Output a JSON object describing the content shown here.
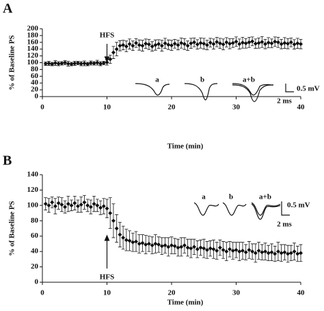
{
  "chart_data": [
    {
      "type": "scatter",
      "panel_label": "A",
      "xlabel": "Time (min)",
      "ylabel": "% of Baseline PS",
      "xlim": [
        0,
        40
      ],
      "xticks": [
        0,
        10,
        20,
        30,
        40
      ],
      "ylim": [
        0,
        200
      ],
      "yticks": [
        0,
        20,
        40,
        60,
        80,
        100,
        120,
        140,
        160,
        180,
        200
      ],
      "annotation": {
        "text": "HFS",
        "x": 10,
        "direction": "down"
      },
      "inset_labels": [
        "a",
        "b",
        "a+b"
      ],
      "scale_labels": [
        "0.5 mV",
        "2 ms"
      ],
      "x": [
        0.5,
        1,
        1.5,
        2,
        2.5,
        3,
        3.5,
        4,
        4.5,
        5,
        5.5,
        6,
        6.5,
        7,
        7.5,
        8,
        8.5,
        9,
        9.5,
        10,
        10.5,
        11,
        11.5,
        12,
        12.5,
        13,
        13.5,
        14,
        14.5,
        15,
        15.5,
        16,
        16.5,
        17,
        17.5,
        18,
        18.5,
        19,
        19.5,
        20,
        20.5,
        21,
        21.5,
        22,
        22.5,
        23,
        23.5,
        24,
        24.5,
        25,
        25.5,
        26,
        26.5,
        27,
        27.5,
        28,
        28.5,
        29,
        29.5,
        30,
        30.5,
        31,
        31.5,
        32,
        32.5,
        33,
        33.5,
        34,
        34.5,
        35,
        35.5,
        36,
        36.5,
        37,
        37.5,
        38,
        38.5,
        39,
        39.5,
        40
      ],
      "series": [
        {
          "color": "#111111",
          "marker": "diamond",
          "values": [
            97,
            98,
            96,
            99,
            97,
            98,
            100,
            97,
            96,
            98,
            99,
            97,
            98,
            96,
            99,
            98,
            100,
            97,
            99,
            101,
            110,
            130,
            140,
            150,
            152,
            148,
            155,
            150,
            158,
            152,
            150,
            156,
            154,
            148,
            152,
            155,
            150,
            157,
            153,
            151,
            156,
            152,
            158,
            155,
            150,
            157,
            160,
            154,
            158,
            156,
            152,
            159,
            155,
            161,
            157,
            154,
            160,
            156,
            158,
            162,
            155,
            159,
            157,
            160,
            163,
            156,
            158,
            161,
            155,
            159,
            157,
            162,
            160,
            155,
            158,
            156,
            160,
            154,
            157,
            155
          ],
          "errors": [
            5,
            6,
            5,
            7,
            6,
            5,
            6,
            7,
            5,
            6,
            5,
            6,
            7,
            5,
            6,
            5,
            7,
            6,
            5,
            8,
            12,
            18,
            20,
            15,
            14,
            16,
            15,
            14,
            13,
            15,
            16,
            14,
            15,
            14,
            15,
            13,
            16,
            15,
            14,
            15,
            13,
            14,
            15,
            16,
            14,
            15,
            13,
            14,
            15,
            16,
            14,
            13,
            15,
            14,
            15,
            16,
            14,
            15,
            13,
            14,
            15,
            16,
            14,
            15,
            13,
            14,
            15,
            16,
            14,
            15,
            13,
            14,
            15,
            14,
            16,
            15,
            13,
            14,
            15,
            14
          ]
        }
      ]
    },
    {
      "type": "scatter",
      "panel_label": "B",
      "xlabel": "Time (min)",
      "ylabel": "% of Baseline PS",
      "xlim": [
        0,
        40
      ],
      "xticks": [
        0,
        10,
        20,
        30,
        40
      ],
      "ylim": [
        0,
        140
      ],
      "yticks": [
        0,
        20,
        40,
        60,
        80,
        100,
        120,
        140
      ],
      "annotation": {
        "text": "HFS",
        "x": 10,
        "direction": "up"
      },
      "inset_labels": [
        "a",
        "b",
        "a+b"
      ],
      "scale_labels": [
        "0.5 mV",
        "2 ms"
      ],
      "x": [
        0.5,
        1,
        1.5,
        2,
        2.5,
        3,
        3.5,
        4,
        4.5,
        5,
        5.5,
        6,
        6.5,
        7,
        7.5,
        8,
        8.5,
        9,
        9.5,
        10,
        10.5,
        11,
        11.5,
        12,
        12.5,
        13,
        13.5,
        14,
        14.5,
        15,
        15.5,
        16,
        16.5,
        17,
        17.5,
        18,
        18.5,
        19,
        19.5,
        20,
        20.5,
        21,
        21.5,
        22,
        22.5,
        23,
        23.5,
        24,
        24.5,
        25,
        25.5,
        26,
        26.5,
        27,
        27.5,
        28,
        28.5,
        29,
        29.5,
        30,
        30.5,
        31,
        31.5,
        32,
        32.5,
        33,
        33.5,
        34,
        34.5,
        35,
        35.5,
        36,
        36.5,
        37,
        37.5,
        38,
        38.5,
        39,
        39.5,
        40
      ],
      "series": [
        {
          "color": "#111111",
          "marker": "diamond",
          "values": [
            102,
            100,
            104,
            99,
            103,
            101,
            98,
            102,
            100,
            103,
            99,
            101,
            104,
            100,
            98,
            102,
            100,
            97,
            99,
            96,
            90,
            80,
            70,
            62,
            58,
            55,
            54,
            52,
            53,
            50,
            51,
            49,
            50,
            48,
            50,
            49,
            47,
            48,
            46,
            48,
            47,
            45,
            46,
            48,
            45,
            44,
            46,
            43,
            45,
            44,
            42,
            44,
            43,
            41,
            45,
            42,
            40,
            43,
            41,
            42,
            40,
            41,
            39,
            42,
            40,
            38,
            41,
            39,
            40,
            38,
            39,
            37,
            40,
            38,
            39,
            37,
            38,
            40,
            37,
            38
          ],
          "errors": [
            8,
            9,
            7,
            10,
            8,
            9,
            8,
            10,
            7,
            9,
            8,
            10,
            9,
            8,
            9,
            10,
            8,
            9,
            10,
            12,
            20,
            22,
            18,
            16,
            15,
            14,
            13,
            12,
            13,
            12,
            11,
            12,
            10,
            11,
            12,
            10,
            11,
            10,
            12,
            11,
            10,
            11,
            12,
            10,
            11,
            12,
            10,
            11,
            10,
            12,
            11,
            10,
            12,
            11,
            10,
            11,
            12,
            10,
            11,
            10,
            12,
            11,
            10,
            11,
            10,
            12,
            11,
            10,
            11,
            10,
            11,
            10,
            12,
            11,
            10,
            11,
            10,
            11,
            10,
            11
          ]
        }
      ]
    }
  ]
}
